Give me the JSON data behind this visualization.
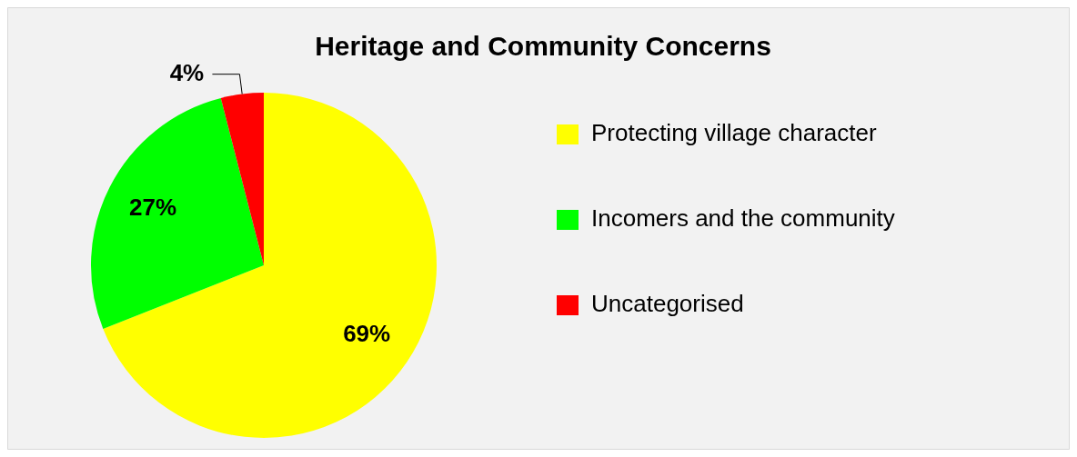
{
  "chart_data": {
    "type": "pie",
    "title": "Heritage and Community Concerns",
    "categories": [
      "Protecting village character",
      "Incomers and the community",
      "Uncategorised"
    ],
    "values": [
      69,
      27,
      4
    ],
    "colors": [
      "#ffff00",
      "#00ff00",
      "#ff0000"
    ],
    "value_labels": [
      "69%",
      "27%",
      "4%"
    ],
    "legend": "right"
  }
}
